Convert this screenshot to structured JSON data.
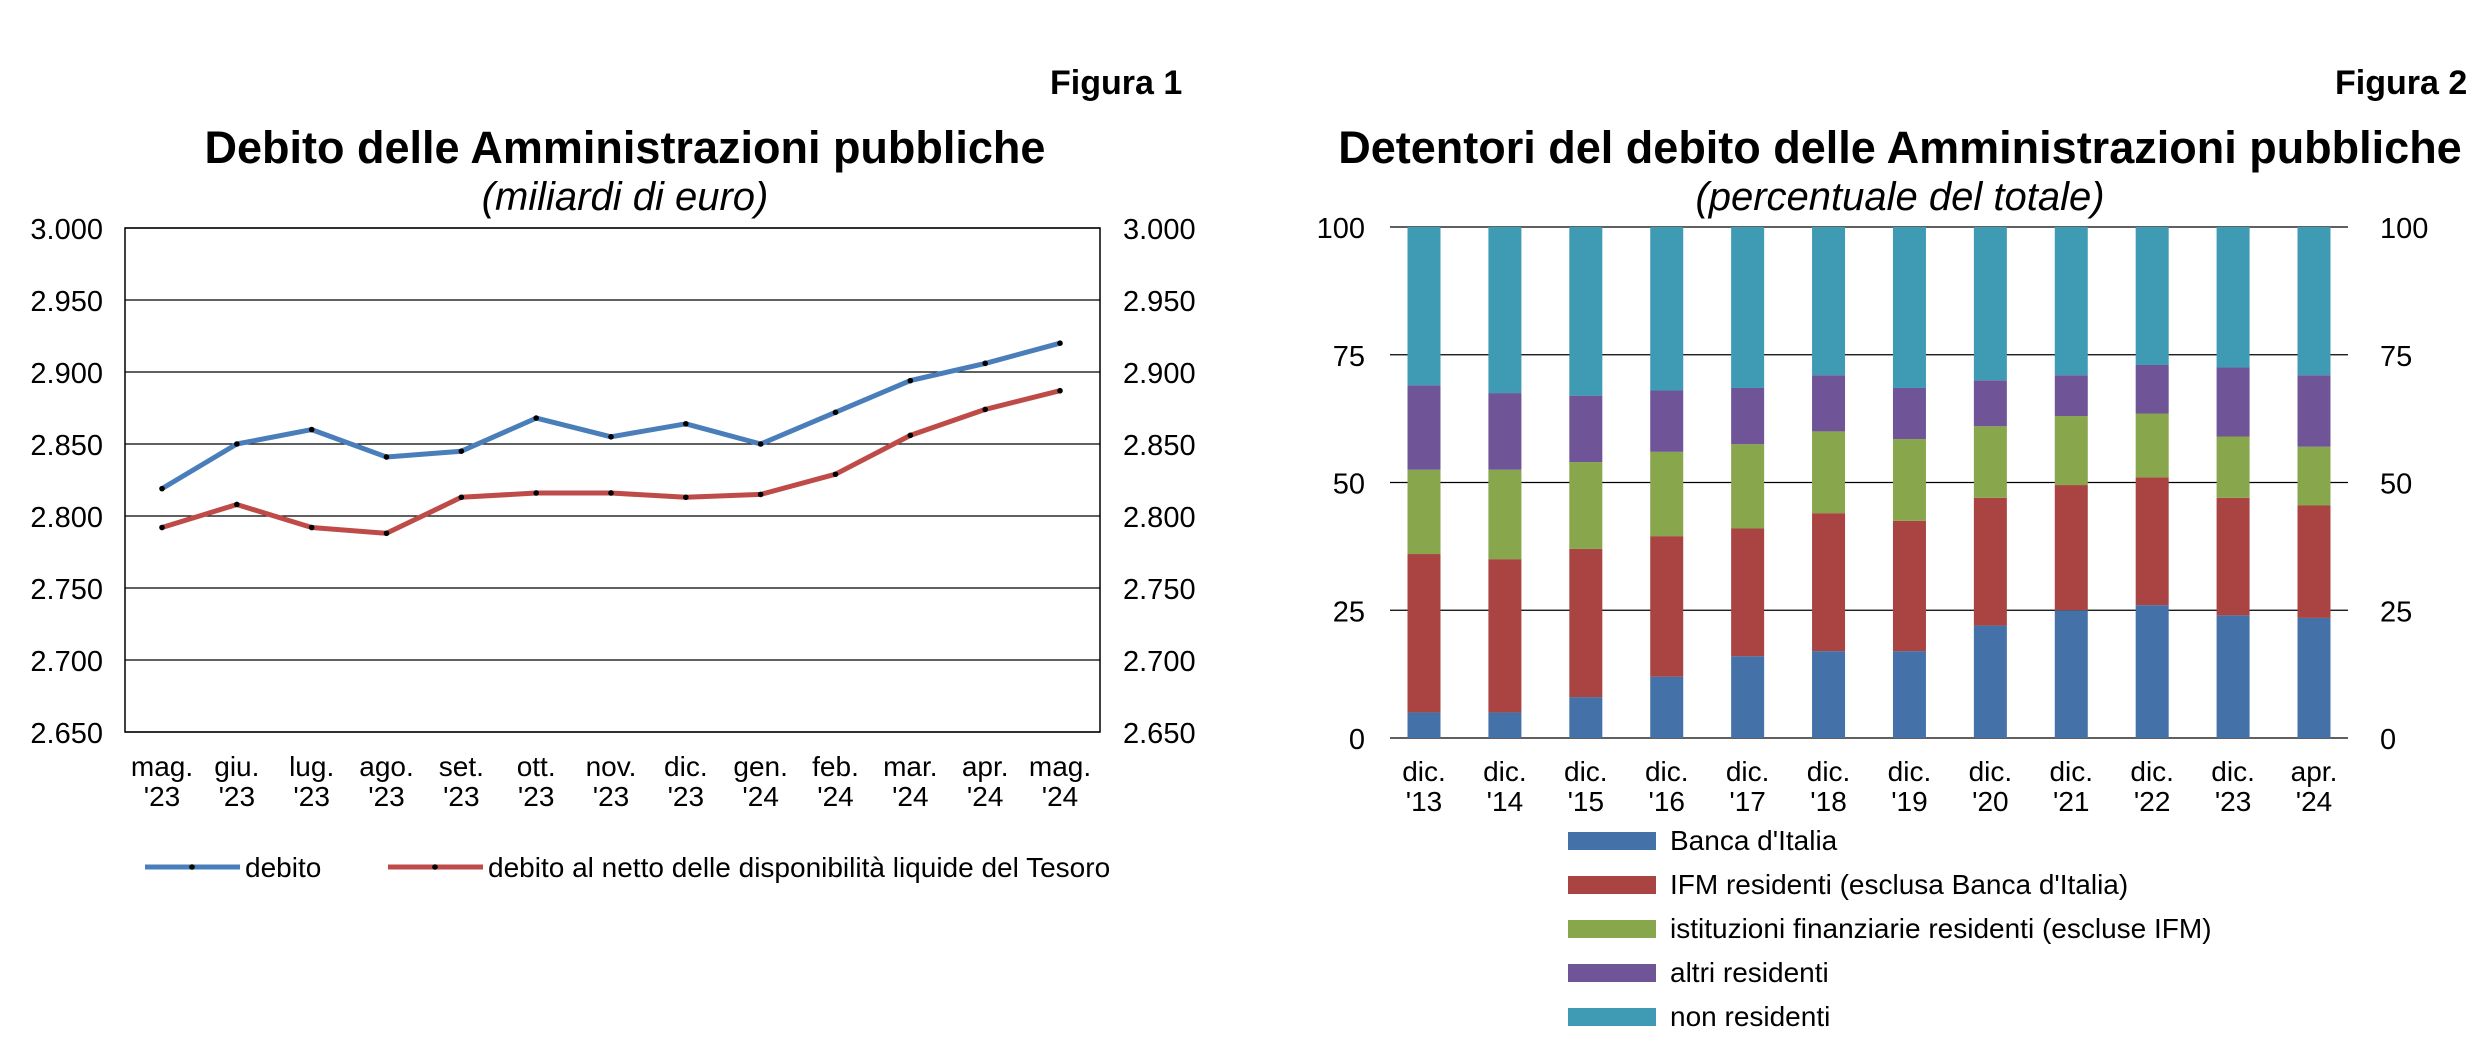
{
  "figure1": {
    "label": "Figura 1",
    "title": "Debito delle Amministrazioni pubbliche",
    "subtitle": "(miliardi di euro)"
  },
  "figure2": {
    "label": "Figura 2",
    "title": "Detentori del debito delle Amministrazioni pubbliche",
    "subtitle": "(percentuale del totale)"
  },
  "chart_data": [
    {
      "type": "line",
      "title": "Debito delle Amministrazioni pubbliche",
      "subtitle": "(miliardi di euro)",
      "categories": [
        [
          "mag.",
          "'23"
        ],
        [
          "giu.",
          "'23"
        ],
        [
          "lug.",
          "'23"
        ],
        [
          "ago.",
          "'23"
        ],
        [
          "set.",
          "'23"
        ],
        [
          "ott.",
          "'23"
        ],
        [
          "nov.",
          "'23"
        ],
        [
          "dic.",
          "'23"
        ],
        [
          "gen.",
          "'24"
        ],
        [
          "feb.",
          "'24"
        ],
        [
          "mar.",
          "'24"
        ],
        [
          "apr.",
          "'24"
        ],
        [
          "mag.",
          "'24"
        ]
      ],
      "yticks": [
        "2.650",
        "2.700",
        "2.750",
        "2.800",
        "2.850",
        "2.900",
        "2.950",
        "3.000"
      ],
      "ylim": [
        2650,
        3000
      ],
      "grid": true,
      "series": [
        {
          "name": "debito",
          "color": "#4a7ebb",
          "values": [
            2819,
            2850,
            2860,
            2841,
            2845,
            2868,
            2855,
            2864,
            2850,
            2872,
            2894,
            2906,
            2920
          ]
        },
        {
          "name": "debito al netto delle disponibilità liquide del Tesoro",
          "color": "#be4b48",
          "values": [
            2792,
            2808,
            2792,
            2788,
            2813,
            2816,
            2816,
            2813,
            2815,
            2829,
            2856,
            2874,
            2887
          ]
        }
      ],
      "legend": "bottom"
    },
    {
      "type": "bar",
      "stacked": true,
      "title": "Detentori del debito delle Amministrazioni pubbliche",
      "subtitle": "(percentuale del totale)",
      "categories": [
        [
          "dic.",
          "'13"
        ],
        [
          "dic.",
          "'14"
        ],
        [
          "dic.",
          "'15"
        ],
        [
          "dic.",
          "'16"
        ],
        [
          "dic.",
          "'17"
        ],
        [
          "dic.",
          "'18"
        ],
        [
          "dic.",
          "'19"
        ],
        [
          "dic.",
          "'20"
        ],
        [
          "dic.",
          "'21"
        ],
        [
          "dic.",
          "'22"
        ],
        [
          "dic.",
          "'23"
        ],
        [
          "apr.",
          "'24"
        ]
      ],
      "yticks": [
        "0",
        "25",
        "50",
        "75",
        "100"
      ],
      "ylim": [
        0,
        100
      ],
      "grid": true,
      "series": [
        {
          "name": "Banca d'Italia",
          "color": "#4472a8",
          "values": [
            5,
            5,
            8,
            12,
            16,
            17,
            17,
            22,
            25,
            26,
            24,
            23.5
          ]
        },
        {
          "name": "IFM residenti (esclusa Banca d'Italia)",
          "color": "#a94442",
          "values": [
            31,
            30,
            29,
            27.5,
            25,
            27,
            25.5,
            25,
            24.5,
            25,
            23,
            22
          ]
        },
        {
          "name": "istituzioni finanziarie residenti (escluse IFM)",
          "color": "#88a64b",
          "values": [
            16.5,
            17.5,
            17,
            16.5,
            16.5,
            16,
            16,
            14,
            13.5,
            12.5,
            12,
            11.5
          ]
        },
        {
          "name": "altri residenti",
          "color": "#6f5597",
          "values": [
            16.5,
            15,
            13,
            12,
            11,
            11,
            10,
            9,
            8,
            9.5,
            13.5,
            14
          ]
        },
        {
          "name": "non residenti",
          "color": "#3e9bb3",
          "values": [
            31,
            32.5,
            33,
            32,
            31.5,
            29,
            31.5,
            30,
            29,
            27,
            27.5,
            29
          ]
        }
      ],
      "legend": "bottom"
    }
  ]
}
